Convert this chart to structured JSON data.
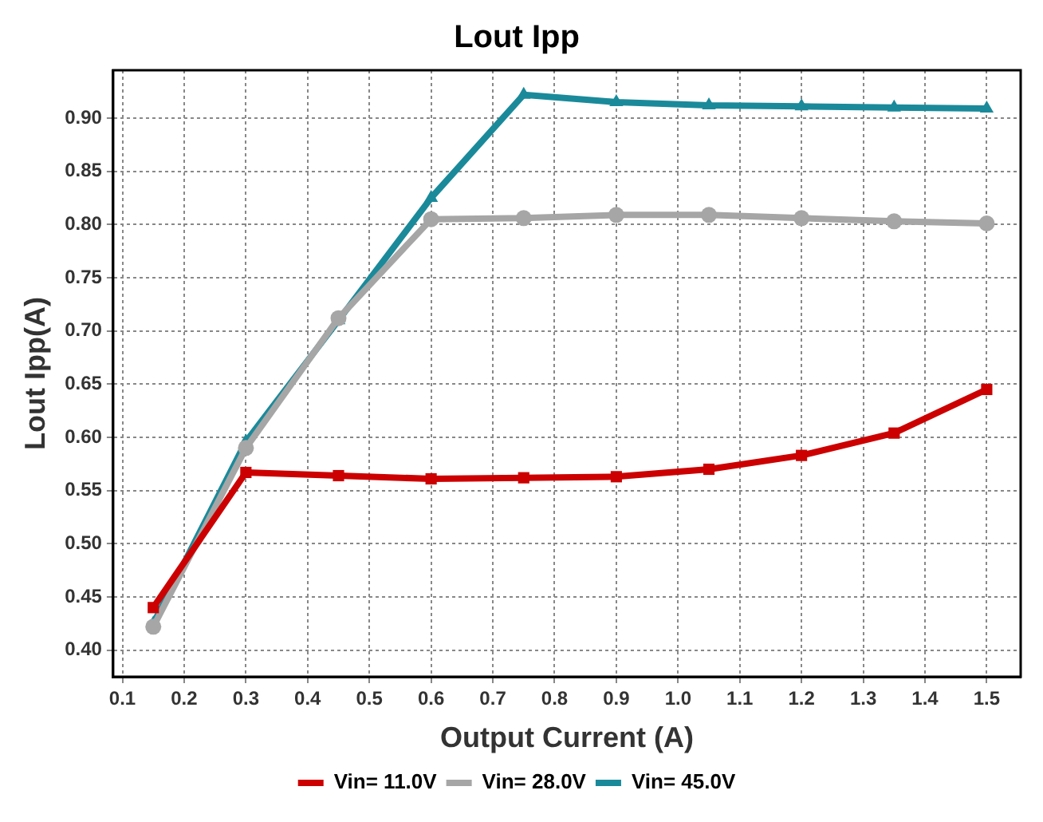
{
  "chart_data": {
    "type": "line",
    "title": "Lout Ipp",
    "xlabel": "Output Current (A)",
    "ylabel": "Lout Ipp(A)",
    "x": [
      0.15,
      0.3,
      0.45,
      0.6,
      0.75,
      0.9,
      1.05,
      1.2,
      1.35,
      1.5
    ],
    "xlim": [
      0.085,
      1.555
    ],
    "xticks": [
      0.1,
      0.2,
      0.3,
      0.4,
      0.5,
      0.6,
      0.7,
      0.8,
      0.9,
      {
        "value": 1,
        "label": "1.0"
      },
      1.1,
      1.2,
      1.3,
      1.4,
      1.5
    ],
    "ylim": [
      0.375,
      0.945
    ],
    "yticks": [
      {
        "value": 0.4,
        "label": "0.40"
      },
      0.45,
      {
        "value": 0.5,
        "label": "0.50"
      },
      0.55,
      {
        "value": 0.6,
        "label": "0.60"
      },
      0.65,
      {
        "value": 0.7,
        "label": "0.70"
      },
      0.75,
      {
        "value": 0.8,
        "label": "0.80"
      },
      0.85,
      {
        "value": 0.9,
        "label": "0.90"
      }
    ],
    "grid": true,
    "legend": "bottom",
    "series": [
      {
        "name": "Vin= 11.0V",
        "color": "#cc0000",
        "marker": "square",
        "values": [
          0.44,
          0.567,
          0.564,
          0.561,
          0.562,
          0.563,
          0.57,
          0.583,
          0.604,
          0.645
        ]
      },
      {
        "name": "Vin= 28.0V",
        "color": "#a6a6a6",
        "marker": "circle",
        "values": [
          0.422,
          0.59,
          0.712,
          0.805,
          0.806,
          0.809,
          0.809,
          0.806,
          0.803,
          0.801
        ]
      },
      {
        "name": "Vin= 45.0V",
        "color": "#1a8a9a",
        "marker": "triangle",
        "values": [
          0.425,
          0.596,
          0.71,
          0.825,
          0.922,
          0.915,
          0.912,
          0.911,
          0.91,
          0.909
        ]
      }
    ]
  }
}
